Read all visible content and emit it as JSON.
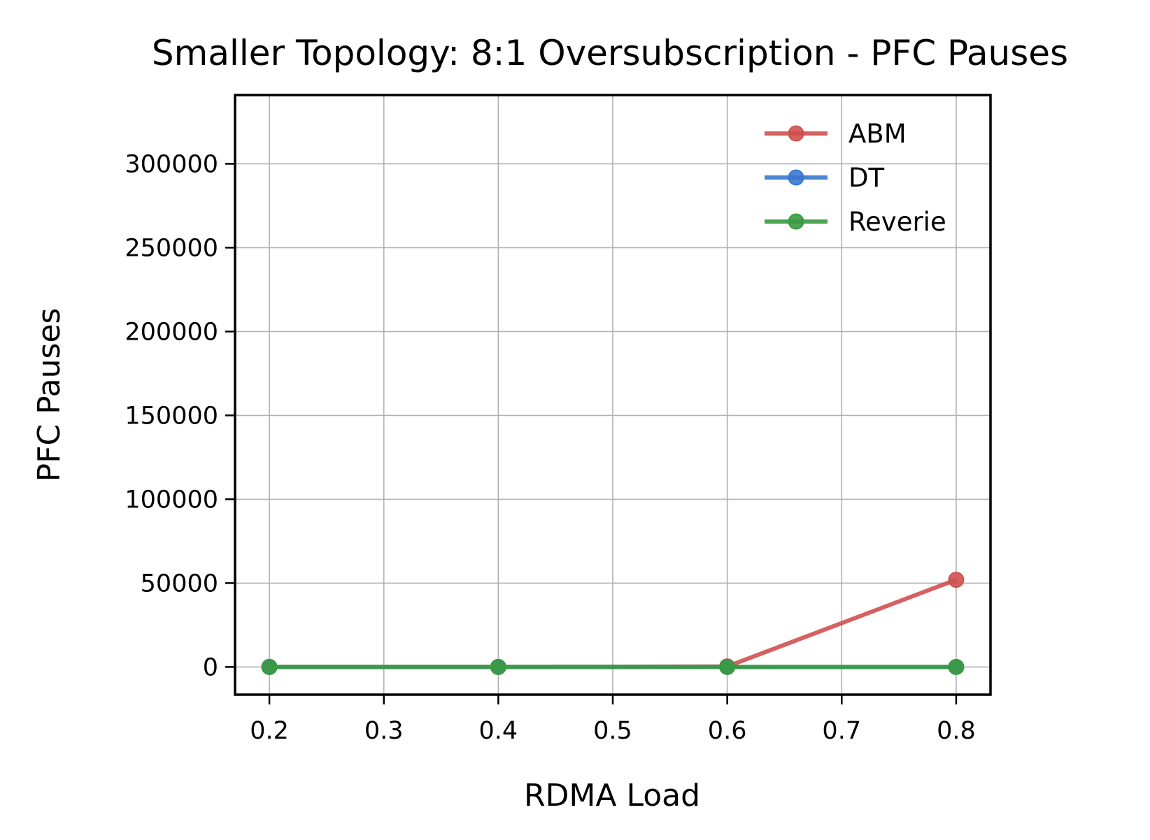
{
  "chart_data": {
    "type": "line",
    "title": "Smaller Topology: 8:1 Oversubscription - PFC Pauses",
    "xlabel": "RDMA Load",
    "ylabel": "PFC Pauses",
    "x": [
      0.2,
      0.4,
      0.6,
      0.8
    ],
    "xticks": [
      "0.2",
      "0.3",
      "0.4",
      "0.5",
      "0.6",
      "0.7",
      "0.8"
    ],
    "yticks": [
      "0",
      "50000",
      "100000",
      "150000",
      "200000",
      "250000",
      "300000"
    ],
    "xlim": [
      0.17,
      0.83
    ],
    "ylim": [
      -16500,
      341000
    ],
    "grid": true,
    "legend_position": "top-right",
    "series": [
      {
        "name": "ABM",
        "color": "#d05050",
        "values": [
          0,
          0,
          300,
          52000
        ]
      },
      {
        "name": "DT",
        "color": "#3a78d0",
        "values": [
          0,
          0,
          0,
          0
        ]
      },
      {
        "name": "Reverie",
        "color": "#3a9a40",
        "values": [
          0,
          0,
          0,
          0
        ]
      }
    ]
  }
}
